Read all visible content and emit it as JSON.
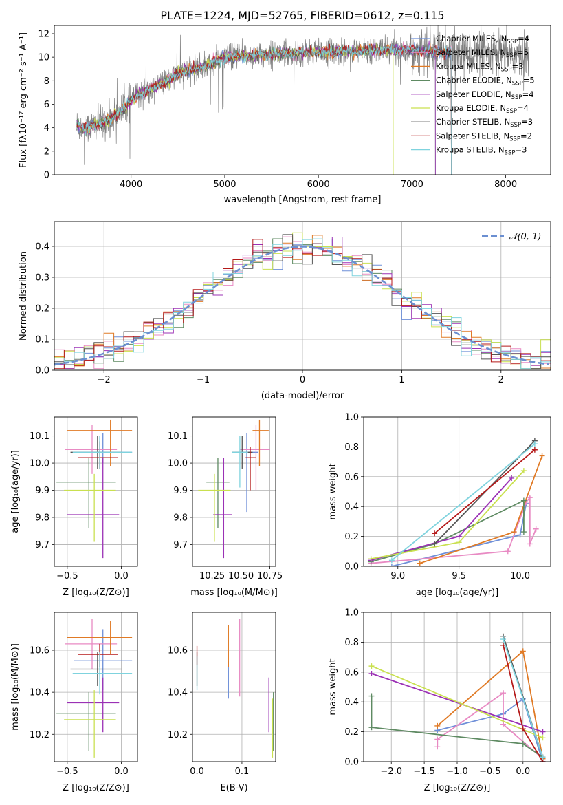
{
  "colors": {
    "Chabrier MILES": "#6e8fd8",
    "Salpeter MILES": "#e88ac3",
    "Kroupa MILES": "#e07a25",
    "Chabrier ELODIE": "#5e8a62",
    "Salpeter ELODIE": "#9b31b5",
    "Kroupa ELODIE": "#c9e04f",
    "Chabrier STELIB": "#555555",
    "Salpeter STELIB": "#b51a1a",
    "Kroupa STELIB": "#7fd3de",
    "gaussian": "#6b8fd1",
    "data": "#808080"
  },
  "chart_data": [
    {
      "id": "spectrum",
      "type": "line",
      "title": "PLATE=1224, MJD=52765, FIBERID=0612, z=0.115",
      "xlabel": "wavelength [Angstrom, rest frame]",
      "ylabel": "Flux [fλ10⁻¹⁷ erg cm⁻² s⁻¹ A⁻¹]",
      "xlim": [
        3180,
        8480
      ],
      "ylim": [
        0,
        12.7
      ],
      "xticks": [
        4000,
        5000,
        6000,
        7000,
        8000
      ],
      "yticks": [
        0,
        2,
        4,
        6,
        8,
        10,
        12
      ],
      "legend_position": "right",
      "legend": [
        {
          "name": "Chabrier MILES",
          "nssp": "4"
        },
        {
          "name": "Salpeter MILES",
          "nssp": "5"
        },
        {
          "name": "Kroupa MILES",
          "nssp": "3"
        },
        {
          "name": "Chabrier ELODIE",
          "nssp": "5"
        },
        {
          "name": "Salpeter ELODIE",
          "nssp": "4"
        },
        {
          "name": "Kroupa ELODIE",
          "nssp": "4"
        },
        {
          "name": "Chabrier STELIB",
          "nssp": "3"
        },
        {
          "name": "Salpeter STELIB",
          "nssp": "2"
        },
        {
          "name": "Kroupa STELIB",
          "nssp": "3"
        }
      ],
      "model_envelope": {
        "x": [
          3420,
          3500,
          3600,
          3700,
          3800,
          3900,
          4000,
          4100,
          4200,
          4300,
          4400,
          4500,
          4600,
          4700,
          4800,
          4900,
          5000,
          5200,
          5400,
          5600,
          5800,
          6000,
          6200,
          6400,
          6600,
          6800,
          7000,
          7200,
          7400
        ],
        "y": [
          4.3,
          3.9,
          4.2,
          4.4,
          4.9,
          5.5,
          6.3,
          6.9,
          7.3,
          7.6,
          8.0,
          8.6,
          8.9,
          9.0,
          9.2,
          9.6,
          10.0,
          10.1,
          10.2,
          10.3,
          10.4,
          10.4,
          10.5,
          10.5,
          10.6,
          10.6,
          10.6,
          10.5,
          10.4
        ]
      },
      "data_x_range": [
        3420,
        8250
      ]
    },
    {
      "id": "residuals",
      "type": "line",
      "xlabel": "(data-model)/error",
      "ylabel": "Normed distribution",
      "xlim": [
        -2.5,
        2.5
      ],
      "ylim": [
        0,
        0.48
      ],
      "xticks": [
        -2,
        -1,
        0,
        1,
        2
      ],
      "yticks": [
        0.0,
        0.1,
        0.2,
        0.3,
        0.4
      ],
      "series": [
        {
          "name": "𝒩(0, 1)",
          "type": "normal",
          "mu": 0,
          "sigma": 1
        }
      ],
      "bin_width": 0.1
    },
    {
      "id": "age-vs-Z",
      "type": "scatter",
      "xlabel": "Z [log₁₀(Z/Z⊙)]",
      "ylabel": "age  [log₁₀(age/yr)]",
      "xlim": [
        -0.62,
        0.15
      ],
      "ylim": [
        9.62,
        10.17
      ],
      "xticks": [
        -0.5,
        0.0
      ],
      "xticklabels": [
        "−0.5",
        "0.0"
      ],
      "yticks": [
        9.7,
        9.8,
        9.9,
        10.0,
        10.1
      ],
      "points": [
        {
          "name": "Chabrier MILES",
          "x": -0.17,
          "xerr": [
            0.27,
            0.27
          ],
          "y": 10.04,
          "yerr": [
            0.04,
            0.07
          ]
        },
        {
          "name": "Salpeter MILES",
          "x": -0.27,
          "xerr": [
            0.25,
            0.23
          ],
          "y": 10.05,
          "yerr": [
            0.09,
            0.09
          ]
        },
        {
          "name": "Kroupa MILES",
          "x": -0.1,
          "xerr": [
            0.4,
            0.2
          ],
          "y": 10.12,
          "yerr": [
            0.13,
            0.04
          ]
        },
        {
          "name": "Chabrier ELODIE",
          "x": -0.3,
          "xerr": [
            0.3,
            0.25
          ],
          "y": 9.93,
          "yerr": [
            0.17,
            0.09
          ]
        },
        {
          "name": "Salpeter ELODIE",
          "x": -0.17,
          "xerr": [
            0.33,
            0.15
          ],
          "y": 9.81,
          "yerr": [
            0.16,
            0.21
          ]
        },
        {
          "name": "Kroupa ELODIE",
          "x": -0.25,
          "xerr": [
            0.28,
            0.2
          ],
          "y": 9.9,
          "yerr": [
            0.19,
            0.06
          ]
        },
        {
          "name": "Chabrier STELIB",
          "x": -0.22,
          "xerr": [
            0.25,
            0.22
          ],
          "y": 10.04,
          "yerr": [
            0.06,
            0.06
          ]
        },
        {
          "name": "Salpeter STELIB",
          "x": -0.2,
          "xerr": [
            0.2,
            0.17
          ],
          "y": 10.02,
          "yerr": [
            0.04,
            0.06
          ]
        },
        {
          "name": "Kroupa STELIB",
          "x": -0.2,
          "xerr": [
            0.25,
            0.3
          ],
          "y": 10.04,
          "yerr": [
            0.06,
            0.06
          ]
        }
      ]
    },
    {
      "id": "age-vs-mass",
      "type": "scatter",
      "xlabel": "mass [log₁₀(M/M⊙)]",
      "xlim": [
        10.08,
        10.8
      ],
      "ylim": [
        9.62,
        10.17
      ],
      "xticks": [
        10.25,
        10.5,
        10.75
      ],
      "xticklabels": [
        "10.25",
        "10.50",
        "10.75"
      ],
      "yticks": [
        9.7,
        9.8,
        9.9,
        10.0,
        10.1
      ],
      "points": [
        {
          "name": "Chabrier MILES",
          "x": 10.55,
          "xerr": [
            0.1,
            0.1
          ],
          "y": 10.04,
          "yerr": [
            0.22,
            0.07
          ]
        },
        {
          "name": "Salpeter MILES",
          "x": 10.63,
          "xerr": [
            0.14,
            0.12
          ],
          "y": 10.05,
          "yerr": [
            0.15,
            0.09
          ]
        },
        {
          "name": "Kroupa MILES",
          "x": 10.66,
          "xerr": [
            0.06,
            0.08
          ],
          "y": 10.12,
          "yerr": [
            0.13,
            0.04
          ]
        },
        {
          "name": "Chabrier ELODIE",
          "x": 10.3,
          "xerr": [
            0.1,
            0.1
          ],
          "y": 9.93,
          "yerr": [
            0.17,
            0.09
          ]
        },
        {
          "name": "Salpeter ELODIE",
          "x": 10.35,
          "xerr": [
            0.09,
            0.07
          ],
          "y": 9.81,
          "yerr": [
            0.16,
            0.21
          ]
        },
        {
          "name": "Kroupa ELODIE",
          "x": 10.27,
          "xerr": [
            0.14,
            0.14
          ],
          "y": 9.9,
          "yerr": [
            0.19,
            0.06
          ]
        },
        {
          "name": "Chabrier STELIB",
          "x": 10.51,
          "xerr": [
            0.09,
            0.09
          ],
          "y": 10.04,
          "yerr": [
            0.06,
            0.06
          ]
        },
        {
          "name": "Salpeter STELIB",
          "x": 10.58,
          "xerr": [
            0.04,
            0.05
          ],
          "y": 10.02,
          "yerr": [
            0.12,
            0.04
          ]
        },
        {
          "name": "Kroupa STELIB",
          "x": 10.49,
          "xerr": [
            0.07,
            0.07
          ],
          "y": 10.04,
          "yerr": [
            0.13,
            0.06
          ]
        }
      ]
    },
    {
      "id": "mass-weight-vs-age",
      "type": "line",
      "xlabel": "age  [log₁₀(age/yr)]",
      "ylabel": "mass weight",
      "xlim": [
        8.72,
        10.25
      ],
      "ylim": [
        0,
        1.0
      ],
      "xticks": [
        9.0,
        9.5,
        10.0
      ],
      "yticks": [
        0.0,
        0.2,
        0.4,
        0.6,
        0.8,
        1.0
      ],
      "series": [
        {
          "name": "Chabrier MILES",
          "x": [
            8.95,
            10.0,
            10.05
          ],
          "y": [
            0.0,
            0.21,
            0.42
          ]
        },
        {
          "name": "Salpeter MILES",
          "x": [
            8.78,
            9.9,
            10.05,
            10.08,
            10.08,
            10.13
          ],
          "y": [
            0.02,
            0.1,
            0.43,
            0.46,
            0.15,
            0.25
          ]
        },
        {
          "name": "Kroupa MILES",
          "x": [
            9.18,
            9.95,
            10.18
          ],
          "y": [
            0.02,
            0.23,
            0.74
          ]
        },
        {
          "name": "Chabrier ELODIE",
          "x": [
            8.78,
            9.3,
            10.03,
            10.03
          ],
          "y": [
            0.03,
            0.15,
            0.44,
            0.23
          ]
        },
        {
          "name": "Salpeter ELODIE",
          "x": [
            8.78,
            9.5,
            9.93
          ],
          "y": [
            0.04,
            0.2,
            0.59
          ]
        },
        {
          "name": "Kroupa ELODIE",
          "x": [
            8.78,
            9.5,
            10.03
          ],
          "y": [
            0.05,
            0.16,
            0.64
          ]
        },
        {
          "name": "Chabrier STELIB",
          "x": [
            9.3,
            10.12
          ],
          "y": [
            0.15,
            0.84
          ]
        },
        {
          "name": "Salpeter STELIB",
          "x": [
            9.3,
            10.12
          ],
          "y": [
            0.22,
            0.78
          ]
        },
        {
          "name": "Kroupa STELIB",
          "x": [
            8.95,
            10.12
          ],
          "y": [
            0.04,
            0.82
          ]
        }
      ]
    },
    {
      "id": "mass-vs-Z",
      "type": "scatter",
      "xlabel": "Z [log₁₀(Z/Z⊙)]",
      "ylabel": "mass [log₁₀(M/M⊙)]",
      "xlim": [
        -0.62,
        0.15
      ],
      "ylim": [
        10.07,
        10.78
      ],
      "xticks": [
        -0.5,
        0.0
      ],
      "xticklabels": [
        "−0.5",
        "0.0"
      ],
      "yticks": [
        10.2,
        10.4,
        10.6
      ],
      "points": [
        {
          "name": "Chabrier MILES",
          "x": -0.17,
          "xerr": [
            0.27,
            0.27
          ],
          "y": 10.55,
          "yerr": [
            0.14,
            0.15
          ]
        },
        {
          "name": "Salpeter MILES",
          "x": -0.27,
          "xerr": [
            0.25,
            0.23
          ],
          "y": 10.63,
          "yerr": [
            0.12,
            0.12
          ]
        },
        {
          "name": "Kroupa MILES",
          "x": -0.1,
          "xerr": [
            0.4,
            0.2
          ],
          "y": 10.66,
          "yerr": [
            0.08,
            0.08
          ]
        },
        {
          "name": "Chabrier ELODIE",
          "x": -0.3,
          "xerr": [
            0.3,
            0.25
          ],
          "y": 10.3,
          "yerr": [
            0.18,
            0.1
          ]
        },
        {
          "name": "Salpeter ELODIE",
          "x": -0.17,
          "xerr": [
            0.33,
            0.15
          ],
          "y": 10.35,
          "yerr": [
            0.14,
            0.12
          ]
        },
        {
          "name": "Kroupa ELODIE",
          "x": -0.25,
          "xerr": [
            0.28,
            0.2
          ],
          "y": 10.27,
          "yerr": [
            0.18,
            0.14
          ]
        },
        {
          "name": "Chabrier STELIB",
          "x": -0.22,
          "xerr": [
            0.25,
            0.22
          ],
          "y": 10.51,
          "yerr": [
            0.08,
            0.08
          ]
        },
        {
          "name": "Salpeter STELIB",
          "x": -0.2,
          "xerr": [
            0.2,
            0.17
          ],
          "y": 10.58,
          "yerr": [
            0.06,
            0.05
          ]
        },
        {
          "name": "Kroupa STELIB",
          "x": -0.2,
          "xerr": [
            0.25,
            0.3
          ],
          "y": 10.49,
          "yerr": [
            0.1,
            0.1
          ]
        }
      ]
    },
    {
      "id": "mass-vs-EBV",
      "type": "scatter",
      "xlabel": "E(B-V)",
      "xlim": [
        -0.01,
        0.175
      ],
      "ylim": [
        10.07,
        10.78
      ],
      "xticks": [
        0.0,
        0.1
      ],
      "xticklabels": [
        "0.0",
        "0.1"
      ],
      "yticks": [
        10.2,
        10.4,
        10.6
      ],
      "points": [
        {
          "name": "Chabrier MILES",
          "x": 0.07,
          "y": 10.55,
          "yerr": [
            0.18,
            0.0
          ]
        },
        {
          "name": "Salpeter MILES",
          "x": 0.095,
          "y": 10.63,
          "yerr": [
            0.25,
            0.12
          ]
        },
        {
          "name": "Kroupa MILES",
          "x": 0.07,
          "y": 10.66,
          "yerr": [
            0.14,
            0.06
          ]
        },
        {
          "name": "Chabrier ELODIE",
          "x": 0.17,
          "y": 10.3,
          "yerr": [
            0.18,
            0.1
          ]
        },
        {
          "name": "Salpeter ELODIE",
          "x": 0.16,
          "y": 10.35,
          "yerr": [
            0.14,
            0.12
          ]
        },
        {
          "name": "Kroupa ELODIE",
          "x": 0.168,
          "y": 10.27,
          "yerr": [
            0.18,
            0.1
          ]
        },
        {
          "name": "Chabrier STELIB",
          "x": 0.0,
          "y": 10.51,
          "yerr": [
            0.08,
            0.08
          ]
        },
        {
          "name": "Salpeter STELIB",
          "x": 0.0,
          "y": 10.58,
          "yerr": [
            0.05,
            0.04
          ]
        },
        {
          "name": "Kroupa STELIB",
          "x": 0.0,
          "y": 10.49,
          "yerr": [
            0.08,
            0.08
          ]
        }
      ]
    },
    {
      "id": "mass-weight-vs-Z",
      "type": "line",
      "xlabel": "Z [log₁₀(Z/Z⊙)]",
      "ylabel": "mass weight",
      "xlim": [
        -2.42,
        0.42
      ],
      "ylim": [
        0,
        1.0
      ],
      "xticks": [
        -2.0,
        -1.5,
        -1.0,
        -0.5,
        0.0
      ],
      "xticklabels": [
        "−2.0",
        "−1.5",
        "−1.0",
        "−0.5",
        "0.0"
      ],
      "yticks": [
        0.0,
        0.2,
        0.4,
        0.6,
        0.8,
        1.0
      ],
      "series": [
        {
          "name": "Chabrier MILES",
          "x": [
            -1.3,
            -0.3,
            0.0,
            0.3
          ],
          "y": [
            0.21,
            0.32,
            0.42,
            0.0
          ]
        },
        {
          "name": "Salpeter MILES",
          "x": [
            -1.3,
            -1.3,
            -0.3,
            -0.3,
            0.3
          ],
          "y": [
            0.1,
            0.15,
            0.46,
            0.25,
            0.02
          ]
        },
        {
          "name": "Kroupa MILES",
          "x": [
            -1.3,
            0.0,
            0.3
          ],
          "y": [
            0.24,
            0.74,
            0.02
          ]
        },
        {
          "name": "Chabrier ELODIE",
          "x": [
            -2.3,
            -2.3,
            -2.3,
            0.0,
            0.3
          ],
          "y": [
            0.44,
            0.23,
            0.23,
            0.12,
            0.03
          ]
        },
        {
          "name": "Salpeter ELODIE",
          "x": [
            -2.3,
            0.3
          ],
          "y": [
            0.59,
            0.2
          ]
        },
        {
          "name": "Kroupa ELODIE",
          "x": [
            -2.3,
            0.3
          ],
          "y": [
            0.64,
            0.16
          ]
        },
        {
          "name": "Chabrier STELIB",
          "x": [
            -0.3,
            0.3
          ],
          "y": [
            0.84,
            0.03
          ]
        },
        {
          "name": "Salpeter STELIB",
          "x": [
            -0.3,
            0.0,
            0.3
          ],
          "y": [
            0.78,
            0.22,
            0.0
          ]
        },
        {
          "name": "Kroupa STELIB",
          "x": [
            -0.3,
            0.3
          ],
          "y": [
            0.82,
            0.03
          ]
        }
      ]
    }
  ]
}
